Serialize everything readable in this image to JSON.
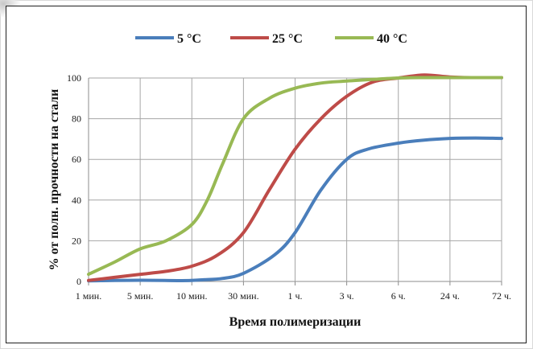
{
  "chart_data": {
    "type": "line",
    "title": "",
    "xlabel": "Время полимеризации",
    "ylabel": "% от полн. прочности на стали",
    "categories": [
      "1 мин.",
      "5 мин.",
      "10 мин.",
      "30 мин.",
      "1 ч.",
      "3 ч.",
      "6 ч.",
      "24 ч.",
      "72 ч."
    ],
    "yticks": [
      "0",
      "20",
      "40",
      "60",
      "80",
      "100"
    ],
    "ylim": [
      0,
      100
    ],
    "grid": true,
    "legend_position": "top",
    "series": [
      {
        "name": "5 °C",
        "color": "#4a7ebb",
        "x": [
          0,
          1,
          1.8,
          2.2,
          2.6,
          3,
          3.6,
          4,
          4.5,
          5,
          5.4,
          6,
          6.5,
          7,
          7.5,
          8
        ],
        "values": [
          0.3,
          0.6,
          0.4,
          0.8,
          1.5,
          4,
          13,
          24,
          45,
          60,
          65,
          68,
          69.5,
          70.3,
          70.5,
          70.3
        ]
      },
      {
        "name": "25 °C",
        "color": "#be4b48",
        "x": [
          0,
          0.5,
          1,
          1.5,
          2,
          2.5,
          3,
          3.5,
          4,
          4.5,
          5,
          5.5,
          6,
          6.5,
          7,
          7.5,
          8
        ],
        "values": [
          0.5,
          2,
          3.5,
          5,
          7.5,
          13,
          24,
          45,
          65,
          80,
          91,
          98,
          100,
          101.5,
          100.5,
          100.2,
          100.2
        ]
      },
      {
        "name": "40 °C",
        "color": "#98b954",
        "x": [
          0,
          0.5,
          1,
          1.5,
          2,
          2.3,
          2.6,
          3,
          3.5,
          4,
          4.5,
          5,
          5.5,
          6,
          6.5,
          7,
          7.5,
          8
        ],
        "values": [
          3.5,
          9.5,
          16,
          20,
          28,
          40,
          58,
          80,
          90,
          95,
          97.5,
          98.5,
          99.3,
          100,
          100.2,
          100.2,
          100.2,
          100.2
        ]
      }
    ]
  }
}
